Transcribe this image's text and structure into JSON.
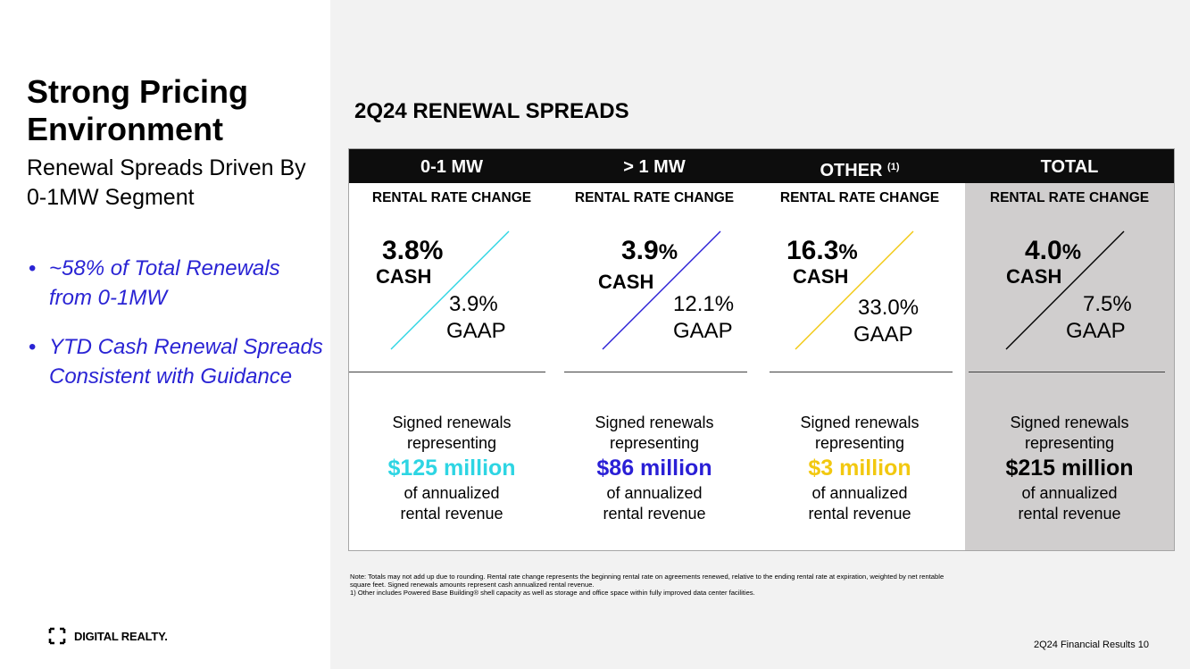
{
  "left": {
    "title": "Strong Pricing Environment",
    "subtitle": "Renewal Spreads Driven By 0-1MW Segment",
    "bullets": [
      "~58% of Total Renewals from 0-1MW",
      "YTD Cash Renewal Spreads Consistent with Guidance"
    ],
    "bullet_glyph": "•",
    "logo_text": "DIGITAL REALTY."
  },
  "section_title": "2Q24 RENEWAL SPREADS",
  "columns": [
    {
      "header": "0-1 MW",
      "footnote_ref": "",
      "sub": "RENTAL RATE CHANGE",
      "cash_value": "3.8%",
      "cash_pct": "",
      "cash_label": "CASH",
      "gaap_value": "3.9%",
      "gaap_label": "GAAP",
      "line1": "Signed renewals",
      "line2": "representing",
      "amount": "$125 million",
      "line3": "of annualized",
      "line4": "rental revenue",
      "color": "#2ed5e3"
    },
    {
      "header": "> 1 MW",
      "footnote_ref": "",
      "sub": "RENTAL RATE CHANGE",
      "cash_value": "3.9",
      "cash_pct": "%",
      "cash_label": "CASH",
      "gaap_value": "12.1%",
      "gaap_label": "GAAP",
      "line1": "Signed renewals",
      "line2": "representing",
      "amount": "$86 million",
      "line3": "of annualized",
      "line4": "rental revenue",
      "color": "#2a1fd6"
    },
    {
      "header": "OTHER",
      "footnote_ref": "(1)",
      "sub": "RENTAL RATE CHANGE",
      "cash_value": "16.3",
      "cash_pct": "%",
      "cash_label": "CASH",
      "gaap_value": "33.0%",
      "gaap_label": "GAAP",
      "line1": "Signed renewals",
      "line2": "representing",
      "amount": "$3 million",
      "line3": "of annualized",
      "line4": "rental revenue",
      "color": "#f2c80f"
    },
    {
      "header": "TOTAL",
      "footnote_ref": "",
      "sub": "RENTAL RATE CHANGE",
      "cash_value": "4.0",
      "cash_pct": "%",
      "cash_label": "CASH",
      "gaap_value": "7.5%",
      "gaap_label": "GAAP",
      "line1": "Signed renewals",
      "line2": "representing",
      "amount": "$215 million",
      "line3": "of annualized",
      "line4": "rental revenue",
      "color": "#000000"
    }
  ],
  "notes": {
    "line1": "Note:  Totals may not add up due to rounding. Rental rate change represents the beginning rental rate on agreements renewed, relative to the ending rental rate at expiration, weighted by net rentable",
    "line2": "square feet.  Signed renewals amounts represent cash annualized rental revenue.",
    "line3": "1)      Other includes Powered Base Building® shell capacity as well as storage and office space within fully improved data center facilities."
  },
  "footer": "2Q24 Financial Results 10"
}
